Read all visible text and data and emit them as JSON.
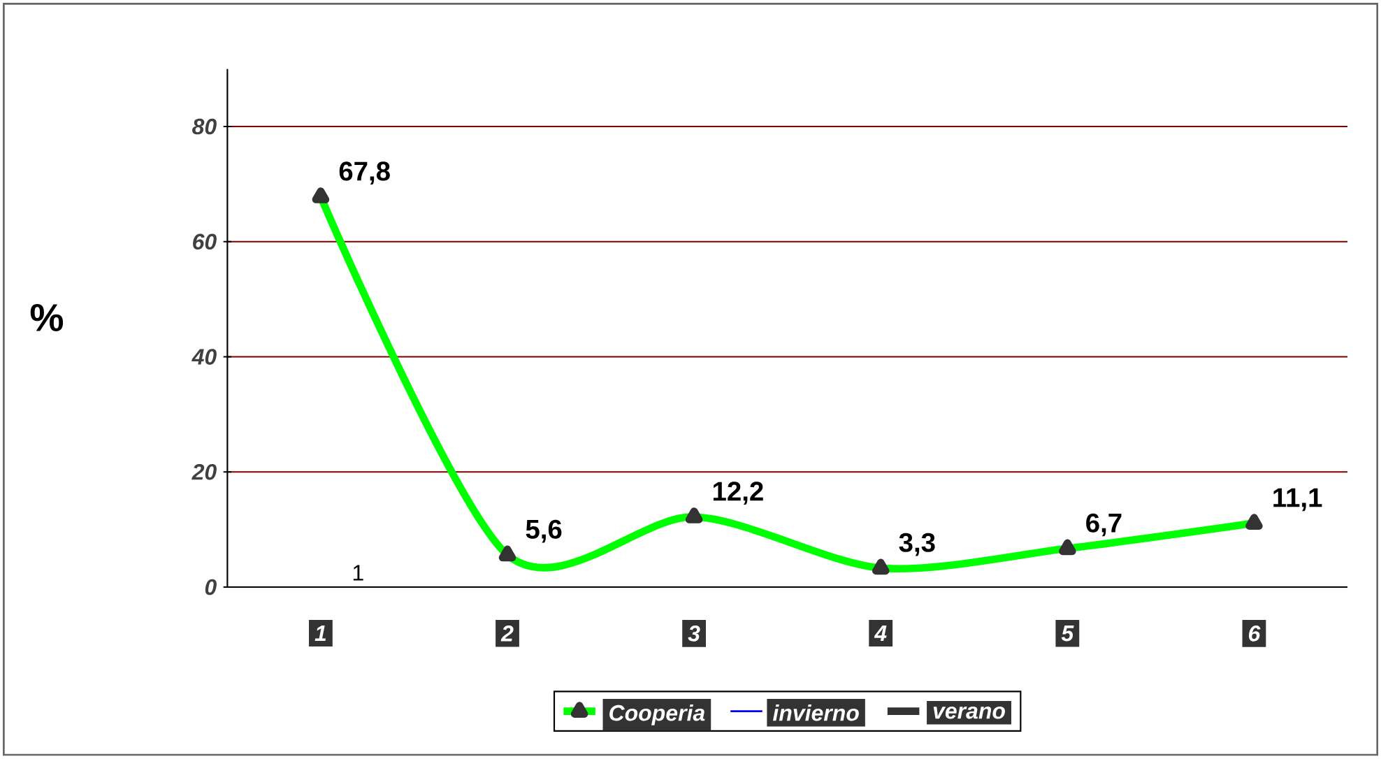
{
  "chart_data": {
    "type": "line",
    "ylabel": "%",
    "categories": [
      "1",
      "2",
      "3",
      "4",
      "5",
      "6"
    ],
    "series": [
      {
        "name": "Cooperia",
        "color": "#00ff00",
        "values": [
          67.8,
          5.6,
          12.2,
          3.3,
          6.7,
          11.1
        ],
        "value_labels": [
          "67,8",
          "5,6",
          "12,2",
          "3,3",
          "6,7",
          "11,1"
        ]
      },
      {
        "name": "invierno",
        "color": "#0000ff",
        "values": [
          null,
          null,
          null,
          null,
          null,
          null
        ]
      },
      {
        "name": "verano",
        "color": "#333333",
        "values": [
          null,
          null,
          null,
          null,
          null,
          null
        ]
      }
    ],
    "ylim": [
      0,
      90
    ],
    "yticks": [
      0,
      20,
      40,
      60,
      80
    ],
    "grid": "y",
    "legend": "bottom",
    "marker": "triangle",
    "line_style": "solid",
    "annotations": [
      "1"
    ]
  }
}
